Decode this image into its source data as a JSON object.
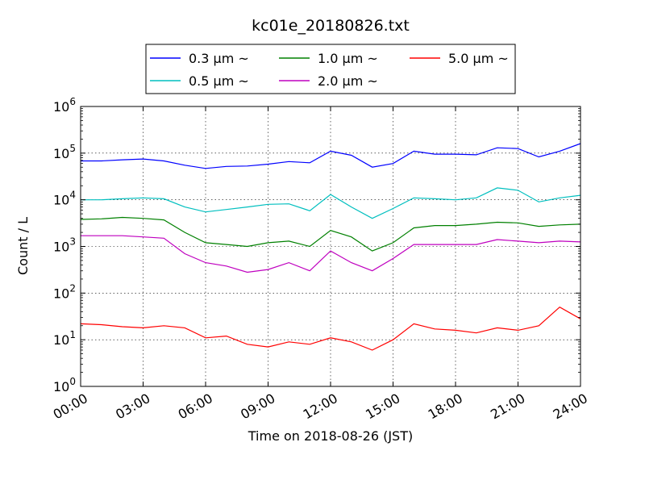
{
  "chart_data": {
    "type": "line",
    "title": "kc01e_20180826.txt",
    "xlabel": "Time on 2018-08-26 (JST)",
    "ylabel": "Count / L",
    "y_scale": "log",
    "ylim": [
      1,
      1000000
    ],
    "xlim": [
      "00:00",
      "24:00"
    ],
    "x_ticks": [
      "00:00",
      "03:00",
      "06:00",
      "09:00",
      "12:00",
      "15:00",
      "18:00",
      "21:00",
      "24:00"
    ],
    "y_ticks": [
      {
        "value": 1,
        "base": "10",
        "exp": "0"
      },
      {
        "value": 10,
        "base": "10",
        "exp": "1"
      },
      {
        "value": 100,
        "base": "10",
        "exp": "2"
      },
      {
        "value": 1000,
        "base": "10",
        "exp": "3"
      },
      {
        "value": 10000,
        "base": "10",
        "exp": "4"
      },
      {
        "value": 100000,
        "base": "10",
        "exp": "5"
      },
      {
        "value": 1000000,
        "base": "10",
        "exp": "6"
      }
    ],
    "grid": true,
    "legend_position": "above plot",
    "x": [
      "00:00",
      "01:00",
      "02:00",
      "03:00",
      "04:00",
      "05:00",
      "06:00",
      "07:00",
      "08:00",
      "09:00",
      "10:00",
      "11:00",
      "12:00",
      "13:00",
      "14:00",
      "15:00",
      "16:00",
      "17:00",
      "18:00",
      "19:00",
      "20:00",
      "21:00",
      "22:00",
      "23:00",
      "24:00"
    ],
    "series": [
      {
        "name": "0.3 μm ~",
        "color": "#0000ff",
        "values": [
          68000,
          68000,
          72000,
          75000,
          68000,
          55000,
          47000,
          52000,
          53000,
          58000,
          66000,
          62000,
          110000,
          90000,
          50000,
          60000,
          110000,
          95000,
          95000,
          92000,
          130000,
          125000,
          83000,
          110000,
          160000
        ]
      },
      {
        "name": "0.5 μm ~",
        "color": "#00bfbf",
        "values": [
          10000,
          10000,
          10500,
          11000,
          10500,
          7000,
          5500,
          6200,
          7000,
          8000,
          8200,
          5800,
          13000,
          7000,
          4000,
          6500,
          11000,
          10500,
          10000,
          11000,
          18000,
          16000,
          9000,
          11000,
          12500
        ]
      },
      {
        "name": "1.0 μm ~",
        "color": "#008000",
        "values": [
          3800,
          3900,
          4200,
          4000,
          3700,
          2000,
          1200,
          1100,
          1000,
          1200,
          1300,
          1000,
          2200,
          1600,
          800,
          1200,
          2500,
          2800,
          2800,
          3000,
          3300,
          3200,
          2700,
          2900,
          3000
        ]
      },
      {
        "name": "2.0 μm ~",
        "color": "#bf00bf",
        "values": [
          1700,
          1700,
          1700,
          1600,
          1500,
          700,
          450,
          380,
          280,
          320,
          450,
          300,
          800,
          450,
          300,
          550,
          1100,
          1100,
          1100,
          1100,
          1400,
          1300,
          1200,
          1300,
          1250
        ]
      },
      {
        "name": "5.0 μm ~",
        "color": "#ff0000",
        "values": [
          22,
          21,
          19,
          18,
          20,
          18,
          11,
          12,
          8,
          7,
          9,
          8,
          11,
          9,
          6,
          10,
          22,
          17,
          16,
          14,
          18,
          16,
          20,
          50,
          28
        ]
      }
    ]
  }
}
